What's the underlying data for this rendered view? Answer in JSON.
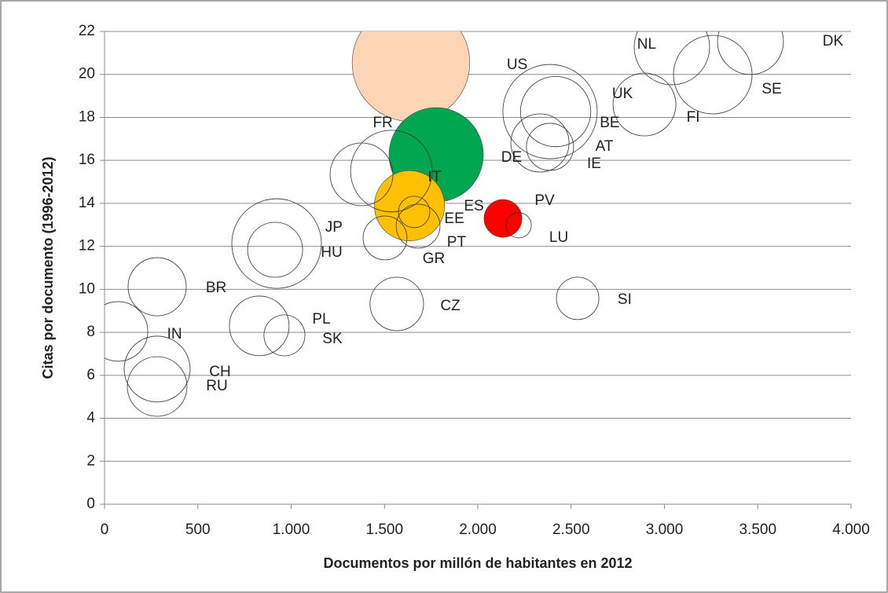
{
  "chart_data": {
    "type": "bubble",
    "x_label": "Documentos por millón de habitantes en 2012",
    "y_label": "Citas por documento (1996-2012)",
    "xlim": [
      0,
      4000
    ],
    "xticks": [
      0,
      500,
      {
        "value": 1000,
        "label": "1.000"
      },
      {
        "value": 1500,
        "label": "1.500"
      },
      {
        "value": 2000,
        "label": "2.000"
      },
      {
        "value": 2500,
        "label": "2.500"
      },
      {
        "value": 3000,
        "label": "3.000"
      },
      {
        "value": 3500,
        "label": "3.500"
      },
      {
        "value": 4000,
        "label": "4.000"
      }
    ],
    "ylim": [
      0,
      22
    ],
    "yticks": [
      0,
      2,
      4,
      6,
      8,
      10,
      12,
      14,
      16,
      18,
      20,
      22
    ],
    "grid": true,
    "bubbles": [
      {
        "x": 1642,
        "y": 20.54,
        "size": 56,
        "color": "#fbd5b5"
      },
      {
        "x": 1777,
        "y": 16.26,
        "size": 36,
        "color": "#00a650"
      },
      {
        "x": 1634,
        "y": 13.89,
        "size": 20,
        "color": "#ffc000"
      },
      {
        "x": 2135,
        "y": 13.3,
        "size": 5.8,
        "color": "#ff0000"
      },
      {
        "x": 2219,
        "y": 12.98,
        "size": 2.6
      },
      {
        "x": 1659,
        "y": 13.6,
        "size": 4
      },
      {
        "x": 1680,
        "y": 12.94,
        "size": 7.8
      },
      {
        "x": 1503,
        "y": 12.39,
        "size": 7.8
      },
      {
        "x": 1377,
        "y": 15.35,
        "size": 16
      },
      {
        "x": 1537,
        "y": 15.5,
        "size": 27
      },
      {
        "x": 2387,
        "y": 18.27,
        "size": 36
      },
      {
        "x": 2417,
        "y": 18.27,
        "size": 20
      },
      {
        "x": 2333,
        "y": 16.81,
        "size": 13.7
      },
      {
        "x": 2387,
        "y": 16.63,
        "size": 9
      },
      {
        "x": 3040,
        "y": 21.27,
        "size": 23
      },
      {
        "x": 3461,
        "y": 21.53,
        "size": 17.6
      },
      {
        "x": 3259,
        "y": 19.99,
        "size": 25
      },
      {
        "x": 2893,
        "y": 18.6,
        "size": 16
      },
      {
        "x": 922,
        "y": 12.13,
        "size": 32.5
      },
      {
        "x": 914,
        "y": 11.84,
        "size": 12.25
      },
      {
        "x": 282,
        "y": 10.12,
        "size": 13.7
      },
      {
        "x": 72,
        "y": 8.04,
        "size": 14.4
      },
      {
        "x": 282,
        "y": 6.29,
        "size": 17.6
      },
      {
        "x": 282,
        "y": 5.48,
        "size": 14.4
      },
      {
        "x": 829,
        "y": 8.3,
        "size": 14.4
      },
      {
        "x": 964,
        "y": 7.86,
        "size": 6.8
      },
      {
        "x": 1566,
        "y": 9.32,
        "size": 11.6
      },
      {
        "x": 2535,
        "y": 9.58,
        "size": 7.3
      }
    ],
    "annotations": [
      {
        "text": "US",
        "x": 2211,
        "y": 20.43
      },
      {
        "text": "NL",
        "x": 2905,
        "y": 21.38
      },
      {
        "text": "DK",
        "x": 3903,
        "y": 21.53
      },
      {
        "text": "SE",
        "x": 3575,
        "y": 19.3
      },
      {
        "text": "FI",
        "x": 3154,
        "y": 17.98
      },
      {
        "text": "UK",
        "x": 2775,
        "y": 19.08
      },
      {
        "text": "BE",
        "x": 2707,
        "y": 17.73
      },
      {
        "text": "AT",
        "x": 2678,
        "y": 16.63
      },
      {
        "text": "IE",
        "x": 2623,
        "y": 15.83
      },
      {
        "text": "DE",
        "x": 2181,
        "y": 16.12
      },
      {
        "text": "FR",
        "x": 1491,
        "y": 17.73
      },
      {
        "text": "IT",
        "x": 1768,
        "y": 15.2
      },
      {
        "text": "ES",
        "x": 1979,
        "y": 13.85
      },
      {
        "text": "EE",
        "x": 1874,
        "y": 13.27
      },
      {
        "text": "PV",
        "x": 2358,
        "y": 14.11
      },
      {
        "text": "LU",
        "x": 2434,
        "y": 12.39
      },
      {
        "text": "PT",
        "x": 1886,
        "y": 12.17
      },
      {
        "text": "GR",
        "x": 1764,
        "y": 11.4
      },
      {
        "text": "JP",
        "x": 1229,
        "y": 12.87
      },
      {
        "text": "HU",
        "x": 1217,
        "y": 11.7
      },
      {
        "text": "BR",
        "x": 598,
        "y": 10.05
      },
      {
        "text": "CZ",
        "x": 1853,
        "y": 9.21
      },
      {
        "text": "SI",
        "x": 2787,
        "y": 9.5
      },
      {
        "text": "PL",
        "x": 1162,
        "y": 8.59
      },
      {
        "text": "SK",
        "x": 1221,
        "y": 7.68
      },
      {
        "text": "IN",
        "x": 375,
        "y": 7.89
      },
      {
        "text": "CH",
        "x": 619,
        "y": 6.14
      },
      {
        "text": "RU",
        "x": 602,
        "y": 5.48
      }
    ]
  }
}
